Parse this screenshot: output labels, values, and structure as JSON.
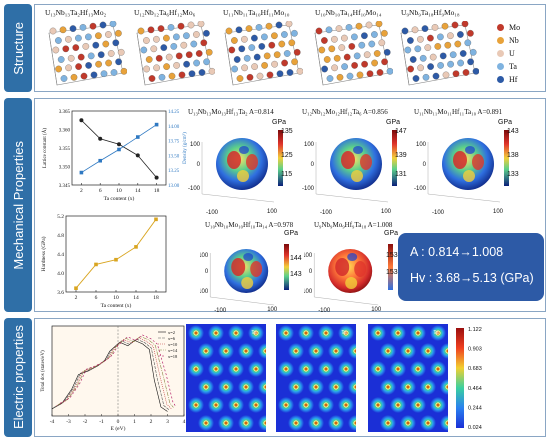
{
  "sections": {
    "structure": "Structure",
    "mechanical": "Mechanical Properties",
    "electric": "Electric properties"
  },
  "structures": [
    {
      "title": "U₁₃Nb₁₃Ta₂Hf₁₃Mo₂"
    },
    {
      "title": "U₁₂Nb₁₂Ta₆Hf₁₂Mo₆"
    },
    {
      "title": "U₁₁Nb₁₁Ta₁₀Hf₁₁Mo₁₀"
    },
    {
      "title": "U₁₀Nb₁₀Ta₁₄Hf₁₀Mo₁₄"
    },
    {
      "title": "U₉Nb₉Ta₁₈Hf₉Mo₁₈"
    }
  ],
  "legend": [
    {
      "label": "Mo",
      "color": "#c0392b"
    },
    {
      "label": "Nb",
      "color": "#e8a23a"
    },
    {
      "label": "U",
      "color": "#e9c9b6"
    },
    {
      "label": "Ta",
      "color": "#7fb3e0"
    },
    {
      "label": "Hf",
      "color": "#2d5aa6"
    }
  ],
  "chart_data": [
    {
      "type": "line",
      "x": [
        2,
        6,
        10,
        14,
        18
      ],
      "xlabel": "Ta content (x)",
      "series": [
        {
          "name": "Lattice constant (Å)",
          "values": [
            3.338,
            3.369,
            3.367,
            3.362,
            3.355
          ],
          "axis": "left",
          "color": "#222222"
        },
        {
          "name": "Density (g/cm³)",
          "values": [
            13.21,
            13.41,
            13.6,
            13.81,
            14.02
          ],
          "axis": "right",
          "color": "#2f79c2"
        }
      ],
      "ylabel_left": "Lattice constant (Å)",
      "ylim_left": [
        3.345,
        3.365
      ],
      "yticks_left": [
        "3.365",
        "3.360",
        "3.355",
        "3.350",
        "3.345"
      ],
      "ylabel_right": "Density (g/cm³)",
      "ylim_right": [
        13.0,
        14.25
      ],
      "yticks_right": [
        "14.25",
        "14.00",
        "13.75",
        "13.50",
        "13.25",
        "13.00"
      ],
      "xticks": [
        "2",
        "6",
        "10",
        "14",
        "18"
      ]
    },
    {
      "type": "line",
      "x": [
        2,
        6,
        10,
        14,
        18
      ],
      "xlabel": "Ta content (x)",
      "ylabel": "Hardness (GPa)",
      "series": [
        {
          "name": "Hardness (GPa)",
          "values": [
            3.68,
            4.18,
            4.28,
            4.55,
            5.13
          ],
          "color": "#d9a520"
        }
      ],
      "ylim": [
        3.6,
        5.2
      ],
      "yticks": [
        "5.2",
        "4.8",
        "4.4",
        "4.0",
        "3.6"
      ],
      "xticks": [
        "2",
        "6",
        "10",
        "14",
        "18"
      ]
    }
  ],
  "spheres": [
    {
      "title": "U₁₃Nb₁₃Mo₁₃Hf₁₃Ta₂  A=0.814",
      "unit": "GPa",
      "cmax": "135",
      "cmin": "115",
      "cmid": "125"
    },
    {
      "title": "U₁₂Nb₁₂Mo₁₂Hf₁₂Ta₆  A=0.856",
      "unit": "GPa",
      "cmax": "147",
      "cmid": "139",
      "cmin": "131"
    },
    {
      "title": "U₁₁Nb₁₁Mo₁₁Hf₁₁Ta₁₀  A=0.891",
      "unit": "GPa",
      "cmax": "143",
      "cmid": "138",
      "cmin": "133"
    },
    {
      "title": "U₁₀Nb₁₀Mo₁₀Hf₁₀Ta₁₄  A=0.978",
      "unit": "GPa",
      "cmax": "144",
      "cmin": "143"
    },
    {
      "title": "U₉Nb₉Mo₉Hf₉Ta₁₈  A=1.008",
      "unit": "GPa",
      "cmax": "153.5",
      "cmin": "153"
    }
  ],
  "axis_ticks": {
    "pos": "100",
    "zero": "0",
    "neg": "-100"
  },
  "summary": {
    "line1": "A : 0.814→1.008",
    "line2": "Hv : 3.68→5.13 (GPa)"
  },
  "dos": {
    "ylabel": "Total dos (states/eV)",
    "xlabel": "E (eV)",
    "xticks": [
      "-4",
      "-3",
      "-2",
      "-1",
      "0",
      "1",
      "2",
      "3",
      "4"
    ],
    "legend": [
      "x=2",
      "x=6",
      "x=10",
      "x=14",
      "x=18"
    ]
  },
  "charge_maps": [
    {
      "labels": [
        "Ta"
      ]
    },
    {
      "labels": [
        "Ta"
      ]
    },
    {
      "labels": [
        "Ta"
      ]
    }
  ],
  "colorbar": {
    "ticks": [
      "1.122",
      "0.903",
      "0.683",
      "0.464",
      "0.244",
      "0.024"
    ]
  }
}
